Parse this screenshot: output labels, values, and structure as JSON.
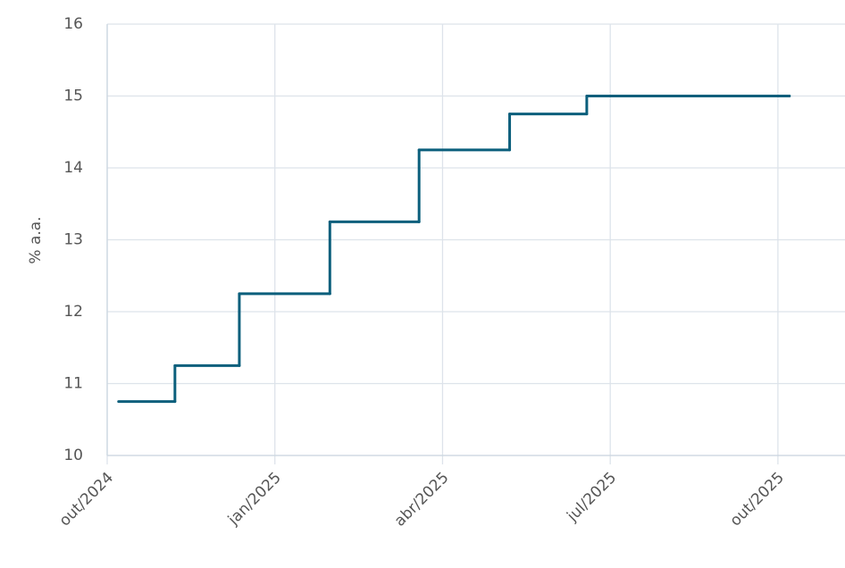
{
  "chart_data": {
    "type": "line",
    "step": true,
    "y_label": "% a.a.",
    "x": [
      2024.767,
      2024.851,
      2024.947,
      2025.082,
      2025.215,
      2025.35,
      2025.465,
      2025.767
    ],
    "series": [
      {
        "color": "#0b5f7c",
        "values": [
          10.75,
          11.25,
          12.25,
          13.25,
          14.25,
          14.75,
          15,
          15
        ]
      }
    ],
    "xlim": [
      2024.75,
      2025.85
    ],
    "xticks": [
      {
        "value": 2024.75,
        "label": "out/2024"
      },
      {
        "value": 2025.0,
        "label": "jan/2025"
      },
      {
        "value": 2025.25,
        "label": "abr/2025"
      },
      {
        "value": 2025.5,
        "label": "jul/2025"
      },
      {
        "value": 2025.75,
        "label": "out/2025"
      }
    ],
    "ylim": [
      10,
      16
    ],
    "yticks": [
      10,
      11,
      12,
      13,
      14,
      15,
      16
    ],
    "grid": true
  }
}
